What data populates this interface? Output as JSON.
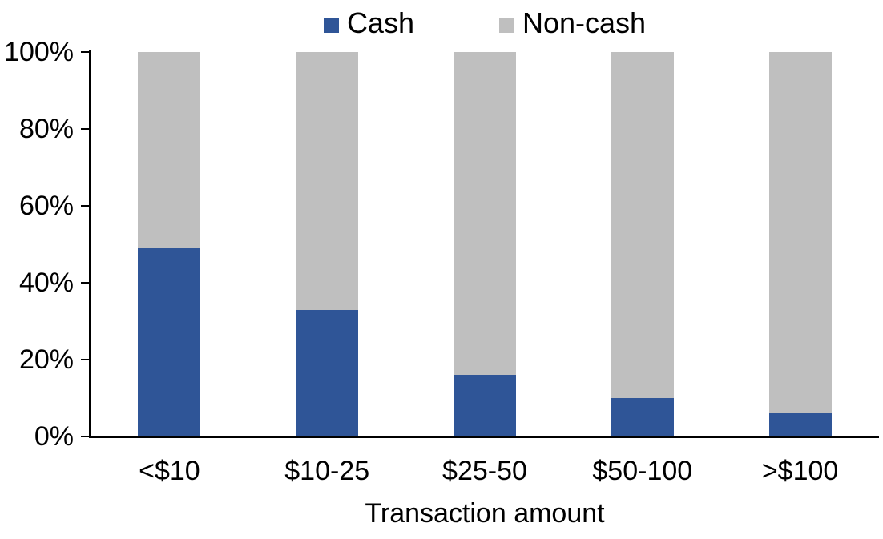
{
  "chart_data": {
    "type": "bar",
    "stacked": true,
    "units": "percent",
    "title": "",
    "xlabel": "Transaction amount",
    "ylabel": "",
    "categories": [
      "<$10",
      "$10-25",
      "$25-50",
      "$50-100",
      ">$100"
    ],
    "series": [
      {
        "name": "Cash",
        "color": "#2F5597",
        "values": [
          49,
          33,
          16,
          10,
          6
        ]
      },
      {
        "name": "Non-cash",
        "color": "#BFBFBF",
        "values": [
          51,
          67,
          84,
          90,
          94
        ]
      }
    ],
    "ylim": [
      0,
      100
    ],
    "yticks": [
      0,
      20,
      40,
      60,
      80,
      100
    ],
    "ytick_labels": [
      "0%",
      "20%",
      "40%",
      "60%",
      "80%",
      "100%"
    ],
    "legend_position": "top-center",
    "grid": false,
    "axis_color": "#000000",
    "background_color": "#FFFFFF"
  }
}
